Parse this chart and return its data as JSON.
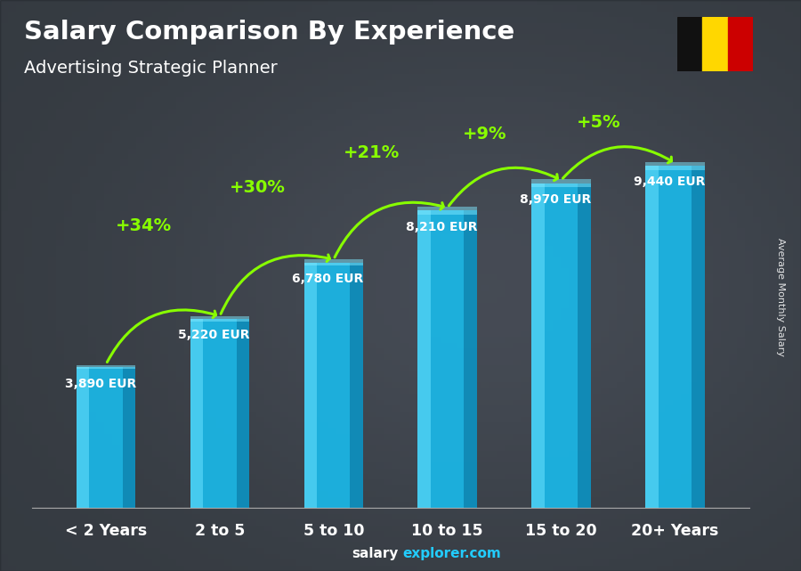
{
  "title": "Salary Comparison By Experience",
  "subtitle": "Advertising Strategic Planner",
  "ylabel": "Average Monthly Salary",
  "footer_bold": "salary",
  "footer_normal": "explorer.com",
  "categories": [
    "< 2 Years",
    "2 to 5",
    "5 to 10",
    "10 to 15",
    "15 to 20",
    "20+ Years"
  ],
  "values": [
    3890,
    5220,
    6780,
    8210,
    8970,
    9440
  ],
  "labels": [
    "3,890 EUR",
    "5,220 EUR",
    "6,780 EUR",
    "8,210 EUR",
    "8,970 EUR",
    "9,440 EUR"
  ],
  "pct_changes": [
    "+34%",
    "+30%",
    "+21%",
    "+9%",
    "+5%"
  ],
  "bar_color_main": "#1ab8e8",
  "bar_color_light": "#55d4f5",
  "bar_color_dark": "#0d7faa",
  "bar_color_top": "#80e8ff",
  "pct_color": "#88ff00",
  "label_color": "#ffffff",
  "title_color": "#ffffff",
  "subtitle_color": "#ffffff",
  "bg_overlay_color": "#00000066",
  "ylim": [
    0,
    11500
  ],
  "figsize": [
    9.0,
    6.41
  ],
  "dpi": 100,
  "flag_colors": [
    "#111111",
    "#FFD700",
    "#CC0000"
  ]
}
